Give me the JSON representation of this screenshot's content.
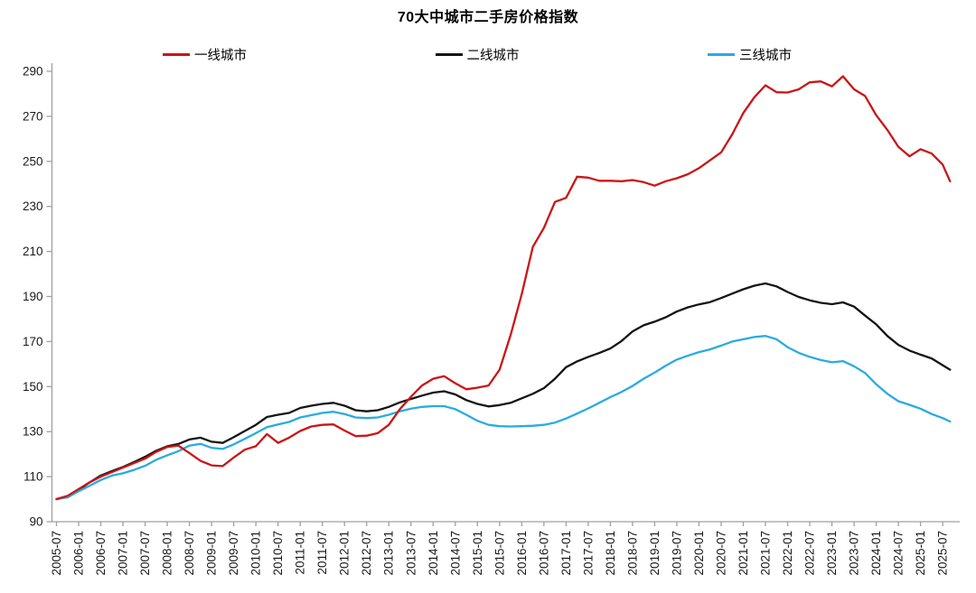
{
  "chart_data": {
    "type": "line",
    "title": "70大中城市二手房价格指数",
    "xlabel": "",
    "ylabel": "",
    "ylim": [
      90,
      290
    ],
    "y_ticks": [
      90,
      110,
      130,
      150,
      170,
      190,
      210,
      230,
      250,
      270,
      290
    ],
    "grid": false,
    "legend_position": "top",
    "axis_color": "#a0a0a0",
    "tick_label_color": "#1a1a1a",
    "x_tick_labels": [
      "2005-07",
      "2006-01",
      "2006-07",
      "2007-01",
      "2007-07",
      "2008-01",
      "2008-07",
      "2009-01",
      "2009-07",
      "2010-01",
      "2010-07",
      "2011-01",
      "2011-07",
      "2012-01",
      "2012-07",
      "2013-01",
      "2013-07",
      "2014-01",
      "2014-07",
      "2015-01",
      "2015-07",
      "2016-01",
      "2016-07",
      "2017-01",
      "2017-07",
      "2018-01",
      "2018-07",
      "2019-01",
      "2019-07",
      "2020-01",
      "2020-07",
      "2021-01",
      "2021-07",
      "2022-01",
      "2022-07",
      "2023-01",
      "2023-07",
      "2024-01",
      "2024-07",
      "2025-01",
      "2025-07"
    ],
    "x": [
      "2005-07",
      "2005-10",
      "2006-01",
      "2006-04",
      "2006-07",
      "2006-10",
      "2007-01",
      "2007-04",
      "2007-07",
      "2007-10",
      "2008-01",
      "2008-04",
      "2008-07",
      "2008-10",
      "2009-01",
      "2009-04",
      "2009-07",
      "2009-10",
      "2010-01",
      "2010-04",
      "2010-07",
      "2010-10",
      "2011-01",
      "2011-04",
      "2011-07",
      "2011-10",
      "2012-01",
      "2012-04",
      "2012-07",
      "2012-10",
      "2013-01",
      "2013-04",
      "2013-07",
      "2013-10",
      "2014-01",
      "2014-04",
      "2014-07",
      "2014-10",
      "2015-01",
      "2015-04",
      "2015-07",
      "2015-10",
      "2016-01",
      "2016-04",
      "2016-07",
      "2016-10",
      "2017-01",
      "2017-04",
      "2017-07",
      "2017-10",
      "2018-01",
      "2018-04",
      "2018-07",
      "2018-10",
      "2019-01",
      "2019-04",
      "2019-07",
      "2019-10",
      "2020-01",
      "2020-04",
      "2020-07",
      "2020-10",
      "2021-01",
      "2021-04",
      "2021-07",
      "2021-10",
      "2022-01",
      "2022-04",
      "2022-07",
      "2022-10",
      "2023-01",
      "2023-04",
      "2023-07",
      "2023-10",
      "2024-01",
      "2024-04",
      "2024-07",
      "2024-10",
      "2025-01",
      "2025-04",
      "2025-07",
      "2025-09"
    ],
    "series": [
      {
        "name": "一线城市",
        "color": "#cc1414",
        "values": [
          100,
          101.5,
          104.5,
          107.5,
          110,
          112,
          114,
          116,
          118,
          121,
          123.2,
          123.8,
          120.5,
          117,
          115,
          114.7,
          118.5,
          122,
          123.5,
          128.9,
          125,
          127.3,
          130.3,
          132.3,
          133,
          133.2,
          130.5,
          128,
          128.2,
          129.3,
          133,
          140,
          145.5,
          150.5,
          153.5,
          154.6,
          151.5,
          148.8,
          149.5,
          150.5,
          157.5,
          173,
          191,
          212,
          220.5,
          232,
          233.8,
          243.2,
          242.8,
          241.4,
          241.4,
          241.2,
          241.7,
          240.8,
          239.2,
          241.2,
          242.5,
          244.3,
          247,
          250.5,
          254,
          262,
          271.5,
          278.5,
          283.8,
          280.7,
          280.6,
          282,
          285.1,
          285.5,
          283.3,
          287.8,
          282,
          279,
          270.5,
          264,
          256.5,
          252.3,
          255.4,
          253.5,
          248.6,
          241.2
        ]
      },
      {
        "name": "二线城市",
        "color": "#141414",
        "values": [
          100,
          101.3,
          104,
          107.5,
          110.5,
          112.5,
          114.3,
          116.5,
          118.8,
          121.5,
          123.5,
          124.5,
          126.5,
          127.3,
          125.5,
          125,
          127.5,
          130.3,
          133,
          136.5,
          137.5,
          138.3,
          140.5,
          141.5,
          142.3,
          142.8,
          141.5,
          139.5,
          139,
          139.5,
          141,
          143,
          144.5,
          146,
          147.3,
          147.9,
          146.5,
          144,
          142.3,
          141.2,
          141.8,
          142.8,
          144.8,
          146.8,
          149.3,
          153.5,
          158.6,
          161.2,
          163.2,
          164.9,
          166.9,
          170.2,
          174.5,
          177.2,
          178.8,
          180.8,
          183.3,
          185.2,
          186.5,
          187.5,
          189.3,
          191.3,
          193.2,
          194.8,
          195.8,
          194.5,
          192,
          189.8,
          188.3,
          187.2,
          186.6,
          187.4,
          185.5,
          181.5,
          177.6,
          172.5,
          168.5,
          166,
          164.2,
          162.5,
          159.5,
          157.5
        ]
      },
      {
        "name": "三线城市",
        "color": "#29abe2",
        "values": [
          100,
          100.8,
          103.5,
          106,
          108.5,
          110.5,
          111.5,
          113,
          114.8,
          117.5,
          119.5,
          121.3,
          123.8,
          124.6,
          122.8,
          122.3,
          124.3,
          126.8,
          129.3,
          132,
          133.2,
          134.3,
          136.3,
          137.3,
          138.3,
          138.8,
          137.8,
          136.3,
          136,
          136.3,
          137.5,
          139,
          140.2,
          141,
          141.3,
          141.3,
          140,
          137.5,
          134.8,
          133,
          132.4,
          132.3,
          132.4,
          132.6,
          133,
          134,
          135.8,
          138,
          140.3,
          142.8,
          145.3,
          147.6,
          150.3,
          153.5,
          156.2,
          159.3,
          162,
          163.7,
          165.3,
          166.5,
          168.2,
          170,
          171,
          172,
          172.5,
          171,
          167.5,
          165,
          163.2,
          161.8,
          160.8,
          161.3,
          159,
          156,
          151,
          146.8,
          143.5,
          141.9,
          140.2,
          137.8,
          136,
          134.5
        ]
      }
    ]
  }
}
